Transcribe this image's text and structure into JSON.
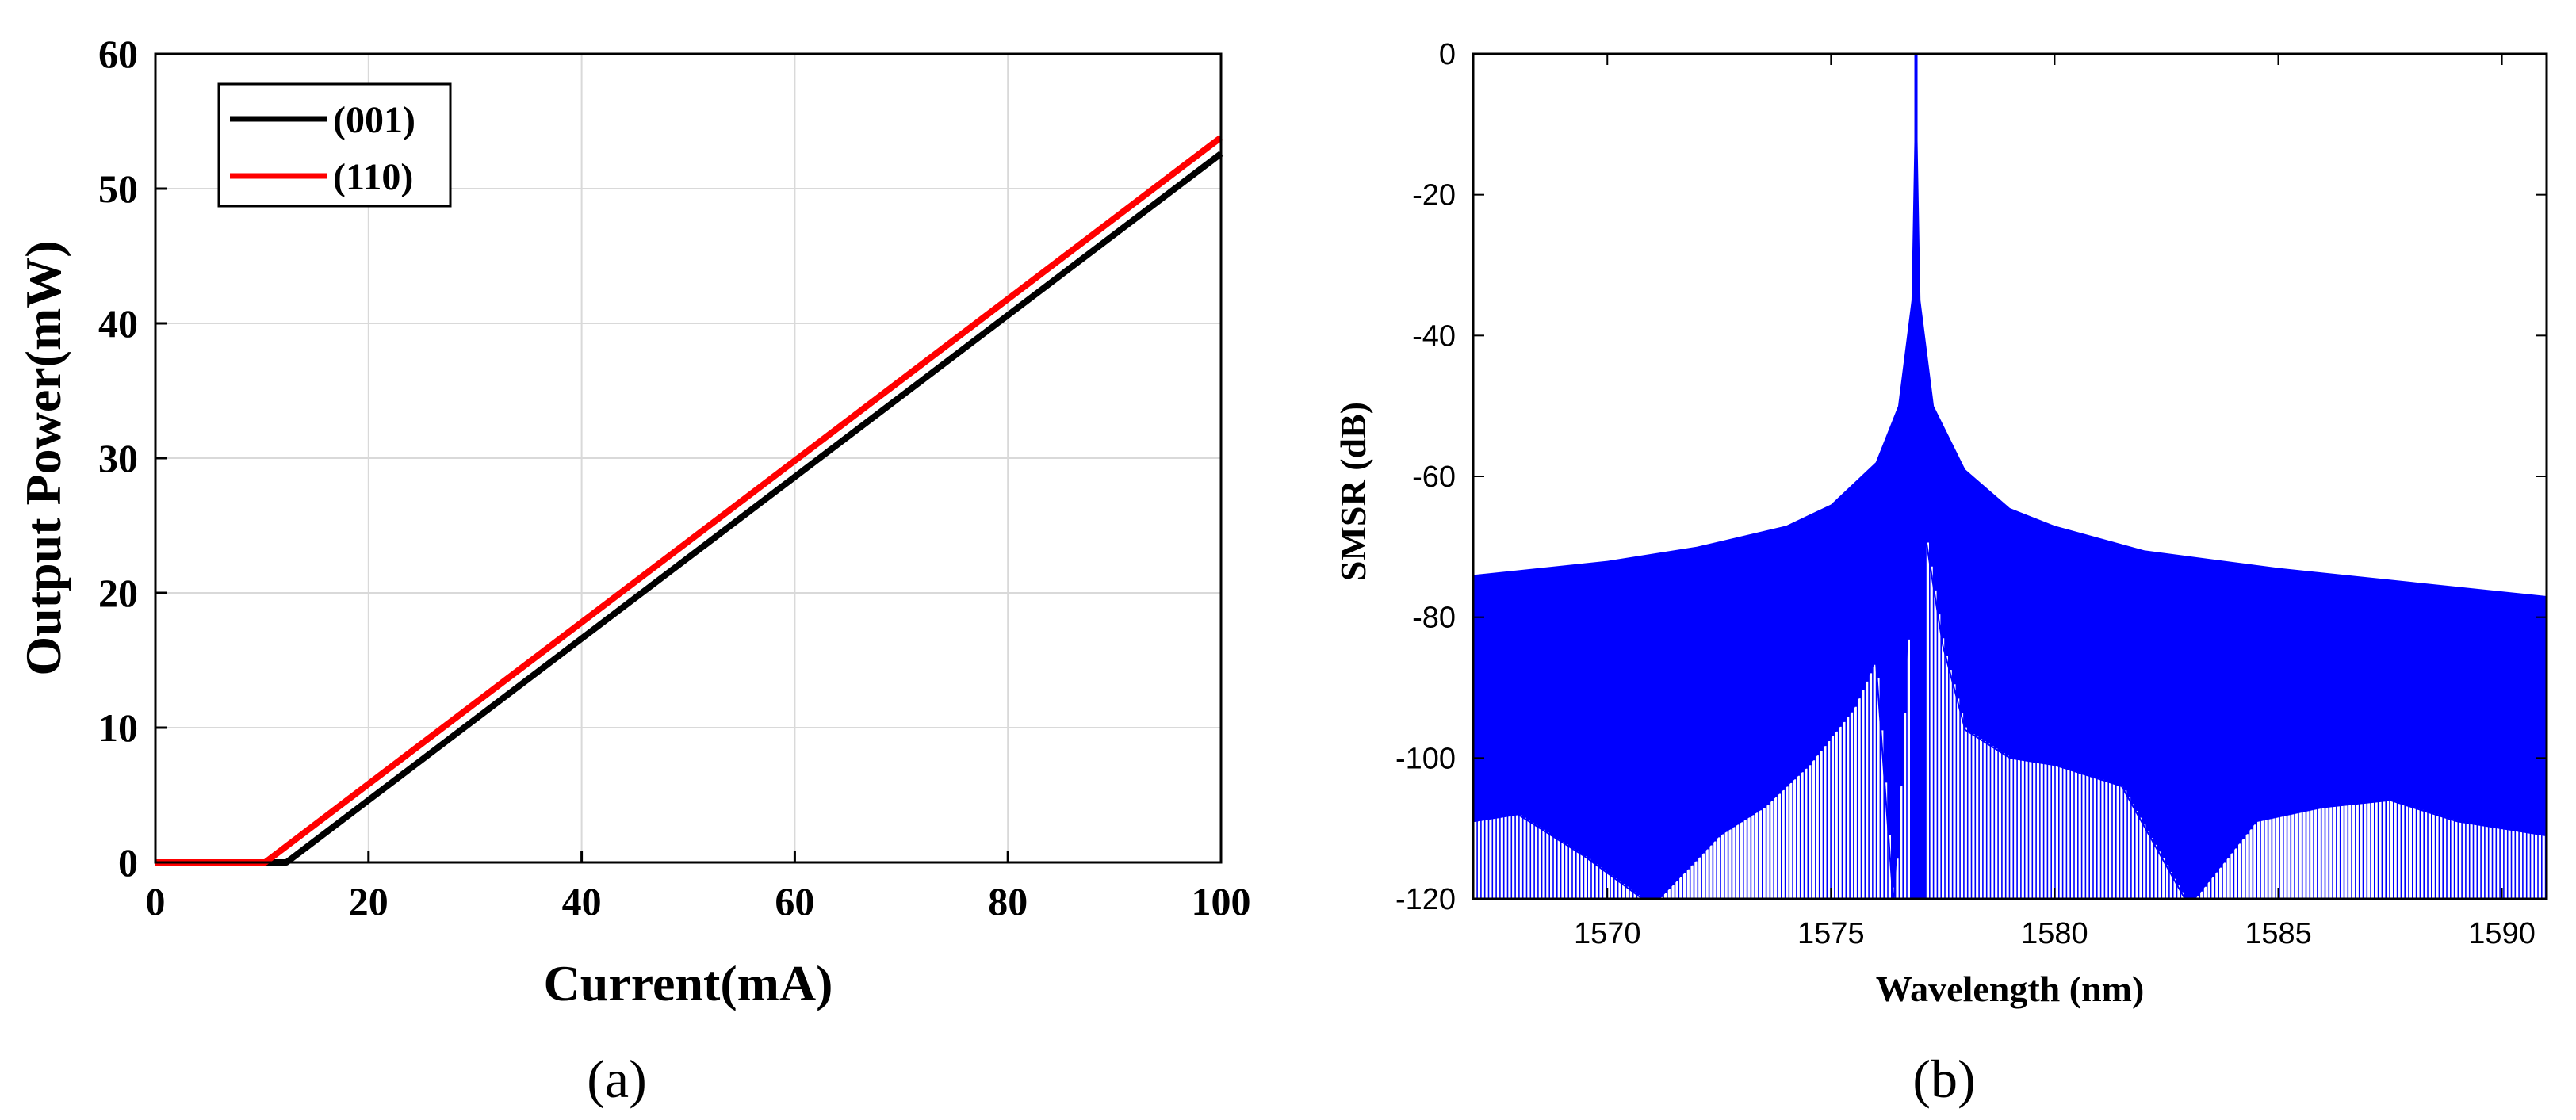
{
  "chart_data": [
    {
      "type": "line",
      "caption": "(a)",
      "xlabel": "Current(mA)",
      "ylabel": "Output Power(mW)",
      "xlim": [
        0,
        100
      ],
      "ylim": [
        0,
        60
      ],
      "xticks": [
        0,
        20,
        40,
        60,
        80,
        100
      ],
      "yticks": [
        0,
        10,
        20,
        30,
        40,
        50,
        60
      ],
      "grid": true,
      "legend_position": "top-left",
      "series": [
        {
          "name": "(001)",
          "color": "#000000",
          "x": [
            0,
            12.3,
            100
          ],
          "y": [
            0,
            0,
            52.6
          ]
        },
        {
          "name": "(110)",
          "color": "#ff0000",
          "x": [
            0,
            10.3,
            100
          ],
          "y": [
            0,
            0,
            53.8
          ]
        }
      ]
    },
    {
      "type": "line",
      "caption": "(b)",
      "xlabel": "Wavelength (nm)",
      "ylabel": "SMSR (dB)",
      "xlim": [
        1567,
        1591
      ],
      "ylim": [
        -120,
        0
      ],
      "xticks": [
        1570,
        1575,
        1580,
        1585,
        1590
      ],
      "yticks": [
        0,
        -20,
        -40,
        -60,
        -80,
        -100,
        -120
      ],
      "grid": false,
      "series": [
        {
          "color": "#0000ff",
          "peak_wavelength": 1576.9,
          "upper_envelope": {
            "x": [
              1567,
              1570,
              1572,
              1574,
              1575,
              1576,
              1576.5,
              1576.8,
              1576.9,
              1577.0,
              1577.3,
              1578,
              1579,
              1580,
              1582,
              1585,
              1588,
              1591
            ],
            "y": [
              -74,
              -72,
              -70,
              -67,
              -64,
              -58,
              -50,
              -35,
              0,
              -35,
              -50,
              -59,
              -64.5,
              -67,
              -70.5,
              -73,
              -75,
              -77
            ]
          },
          "lower_envelope": {
            "x": [
              1567,
              1568,
              1569.5,
              1571,
              1572.5,
              1573.5,
              1574.5,
              1575.5,
              1576,
              1576.4,
              1576.9,
              1577.5,
              1578,
              1579,
              1580,
              1581.5,
              1583,
              1584.5,
              1586,
              1587.5,
              1589,
              1591
            ],
            "y": [
              -109,
              -108,
              -114,
              -121,
              -111,
              -107,
              -101,
              -93,
              -86,
              -121,
              -60,
              -84,
              -96,
              -100,
              -101,
              -104,
              -121,
              -109,
              -107,
              -106,
              -109,
              -111
            ]
          }
        }
      ]
    }
  ]
}
